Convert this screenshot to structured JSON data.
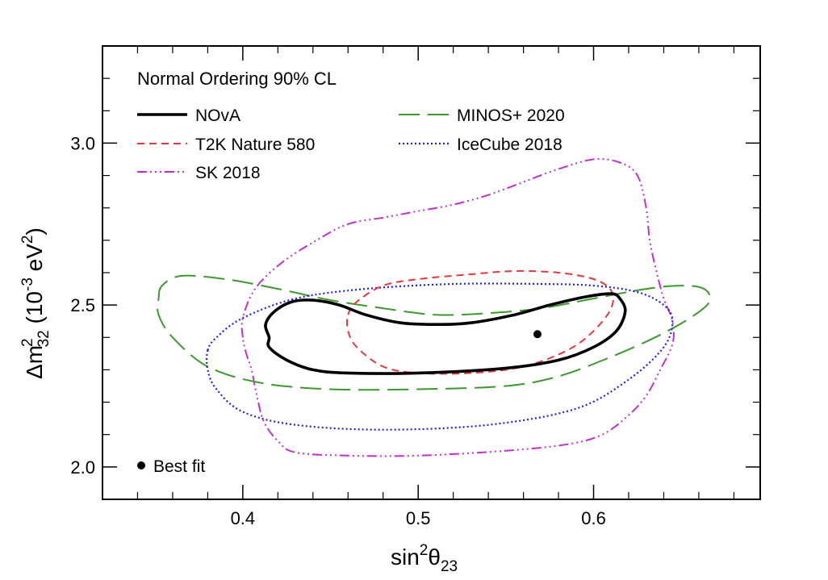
{
  "colors": {
    "nova": "#000000",
    "t2k": "#e8383b",
    "minos": "#3a9a2c",
    "icecube": "#2020e0",
    "sk": "#c030d0"
  },
  "chart_data": {
    "type": "line",
    "title": "Normal Ordering 90% CL",
    "xlabel": {
      "base": "sin",
      "sup": "2",
      "sym": "θ",
      "sub": "23"
    },
    "ylabel": {
      "pre": "Δm",
      "sup": "2",
      "sub": "32",
      "open": " (10",
      "sup2": "-3",
      "unit": " eV",
      "sup3": "2",
      "close": ")"
    },
    "xlim": [
      0.32,
      0.695
    ],
    "ylim": [
      1.9,
      3.3
    ],
    "xticks": [
      0.4,
      0.5,
      0.6
    ],
    "xtick_labels": [
      "0.4",
      "0.5",
      "0.6"
    ],
    "yticks": [
      2.0,
      2.5,
      3.0
    ],
    "ytick_labels": [
      "2.0",
      "2.5",
      "3.0"
    ],
    "grid": false,
    "legend_position": "top-left",
    "series": [
      {
        "key": "nova",
        "name": "NOvA",
        "dash": "solid",
        "width": 3.6,
        "points": [
          [
            0.415,
            2.4
          ],
          [
            0.413,
            2.44
          ],
          [
            0.418,
            2.48
          ],
          [
            0.428,
            2.51
          ],
          [
            0.44,
            2.515
          ],
          [
            0.455,
            2.5
          ],
          [
            0.47,
            2.47
          ],
          [
            0.49,
            2.445
          ],
          [
            0.51,
            2.44
          ],
          [
            0.53,
            2.445
          ],
          [
            0.555,
            2.47
          ],
          [
            0.575,
            2.5
          ],
          [
            0.595,
            2.525
          ],
          [
            0.61,
            2.535
          ],
          [
            0.615,
            2.52
          ],
          [
            0.618,
            2.48
          ],
          [
            0.613,
            2.42
          ],
          [
            0.6,
            2.37
          ],
          [
            0.58,
            2.33
          ],
          [
            0.55,
            2.305
          ],
          [
            0.5,
            2.29
          ],
          [
            0.46,
            2.29
          ],
          [
            0.44,
            2.3
          ],
          [
            0.425,
            2.33
          ],
          [
            0.415,
            2.37
          ]
        ]
      },
      {
        "key": "t2k",
        "name": "T2K Nature 580",
        "dash": "9,6",
        "width": 2,
        "points": [
          [
            0.46,
            2.47
          ],
          [
            0.465,
            2.51
          ],
          [
            0.48,
            2.56
          ],
          [
            0.5,
            2.58
          ],
          [
            0.53,
            2.595
          ],
          [
            0.555,
            2.605
          ],
          [
            0.58,
            2.6
          ],
          [
            0.6,
            2.58
          ],
          [
            0.61,
            2.545
          ],
          [
            0.61,
            2.49
          ],
          [
            0.6,
            2.42
          ],
          [
            0.585,
            2.36
          ],
          [
            0.56,
            2.31
          ],
          [
            0.53,
            2.29
          ],
          [
            0.5,
            2.29
          ],
          [
            0.48,
            2.31
          ],
          [
            0.465,
            2.37
          ],
          [
            0.46,
            2.42
          ]
        ]
      },
      {
        "key": "sk",
        "name": "SK 2018",
        "dash": "12,4,2,4,2,4,2,4",
        "width": 2,
        "points": [
          [
            0.4,
            2.4
          ],
          [
            0.4,
            2.46
          ],
          [
            0.407,
            2.55
          ],
          [
            0.422,
            2.63
          ],
          [
            0.442,
            2.7
          ],
          [
            0.46,
            2.75
          ],
          [
            0.48,
            2.77
          ],
          [
            0.5,
            2.79
          ],
          [
            0.52,
            2.81
          ],
          [
            0.54,
            2.84
          ],
          [
            0.56,
            2.88
          ],
          [
            0.58,
            2.92
          ],
          [
            0.6,
            2.95
          ],
          [
            0.615,
            2.94
          ],
          [
            0.625,
            2.9
          ],
          [
            0.63,
            2.8
          ],
          [
            0.632,
            2.7
          ],
          [
            0.636,
            2.6
          ],
          [
            0.64,
            2.52
          ],
          [
            0.645,
            2.45
          ],
          [
            0.645,
            2.38
          ],
          [
            0.638,
            2.3
          ],
          [
            0.63,
            2.22
          ],
          [
            0.62,
            2.16
          ],
          [
            0.605,
            2.1
          ],
          [
            0.585,
            2.07
          ],
          [
            0.55,
            2.05
          ],
          [
            0.5,
            2.035
          ],
          [
            0.46,
            2.035
          ],
          [
            0.43,
            2.045
          ],
          [
            0.42,
            2.08
          ],
          [
            0.412,
            2.14
          ],
          [
            0.408,
            2.22
          ],
          [
            0.405,
            2.3
          ],
          [
            0.402,
            2.35
          ]
        ]
      },
      {
        "key": "minos",
        "name": "MINOS+ 2020",
        "dash": "26,10",
        "width": 2,
        "points": [
          [
            0.352,
            2.52
          ],
          [
            0.354,
            2.56
          ],
          [
            0.365,
            2.59
          ],
          [
            0.39,
            2.58
          ],
          [
            0.42,
            2.55
          ],
          [
            0.45,
            2.515
          ],
          [
            0.48,
            2.49
          ],
          [
            0.51,
            2.47
          ],
          [
            0.54,
            2.475
          ],
          [
            0.57,
            2.49
          ],
          [
            0.6,
            2.52
          ],
          [
            0.63,
            2.55
          ],
          [
            0.65,
            2.56
          ],
          [
            0.663,
            2.55
          ],
          [
            0.666,
            2.51
          ],
          [
            0.655,
            2.46
          ],
          [
            0.635,
            2.4
          ],
          [
            0.61,
            2.34
          ],
          [
            0.58,
            2.28
          ],
          [
            0.55,
            2.25
          ],
          [
            0.5,
            2.24
          ],
          [
            0.45,
            2.24
          ],
          [
            0.41,
            2.26
          ],
          [
            0.38,
            2.31
          ],
          [
            0.36,
            2.4
          ],
          [
            0.352,
            2.47
          ]
        ]
      },
      {
        "key": "icecube",
        "name": "IceCube 2018",
        "dash": "2,3",
        "width": 2.2,
        "points": [
          [
            0.38,
            2.36
          ],
          [
            0.385,
            2.4
          ],
          [
            0.4,
            2.46
          ],
          [
            0.43,
            2.52
          ],
          [
            0.47,
            2.55
          ],
          [
            0.52,
            2.565
          ],
          [
            0.57,
            2.565
          ],
          [
            0.6,
            2.56
          ],
          [
            0.625,
            2.54
          ],
          [
            0.64,
            2.5
          ],
          [
            0.645,
            2.45
          ],
          [
            0.64,
            2.37
          ],
          [
            0.62,
            2.27
          ],
          [
            0.59,
            2.18
          ],
          [
            0.54,
            2.13
          ],
          [
            0.48,
            2.115
          ],
          [
            0.43,
            2.13
          ],
          [
            0.4,
            2.17
          ],
          [
            0.385,
            2.24
          ],
          [
            0.38,
            2.3
          ]
        ]
      }
    ],
    "best_fit": {
      "label": "Best fit",
      "x": 0.568,
      "y": 2.41
    }
  }
}
